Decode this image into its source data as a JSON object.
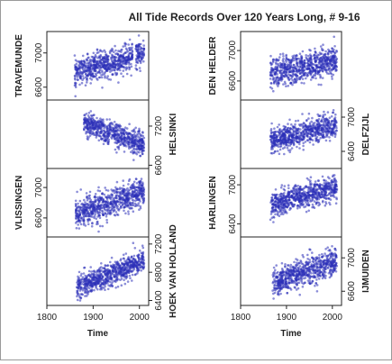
{
  "chart_data": {
    "type": "scatter",
    "title": "All Tide Records Over 120 Years Long, # 9-16",
    "xlabel": "Time",
    "xlim": [
      1800,
      2020
    ],
    "xticks": [
      1800,
      1900,
      2000
    ],
    "point_color": "#2b2fb8",
    "columns": [
      {
        "panels": [
          {
            "name": "TRAVEMUNDE",
            "label_side": "left",
            "tick_side": "left",
            "ylim": [
              6450,
              7250
            ],
            "yticks": [
              6600,
              7000
            ],
            "start_year": 1860,
            "end_year": 2010,
            "trend": [
              6760,
              7000
            ],
            "spread": 140,
            "gap": [
              1985,
              1992
            ]
          },
          {
            "name": "HELSINKI",
            "label_side": "right",
            "tick_side": "right",
            "ylim": [
              6550,
              7600
            ],
            "yticks": [
              6600,
              7200
            ],
            "start_year": 1880,
            "end_year": 2010,
            "trend": [
              7250,
              6900
            ],
            "spread": 170
          },
          {
            "name": "VLISSINGEN",
            "label_side": "left",
            "tick_side": "left",
            "ylim": [
              6350,
              7250
            ],
            "yticks": [
              6600,
              7000
            ],
            "start_year": 1862,
            "end_year": 2010,
            "trend": [
              6650,
              6950
            ],
            "spread": 160
          },
          {
            "name": "HOEK VAN HOLLAND",
            "label_side": "right",
            "tick_side": "right",
            "ylim": [
              6330,
              7300
            ],
            "yticks": [
              6400,
              6800,
              7200
            ],
            "start_year": 1864,
            "end_year": 2010,
            "trend": [
              6580,
              6960
            ],
            "spread": 150
          }
        ]
      },
      {
        "panels": [
          {
            "name": "DEN HELDER",
            "label_side": "left",
            "tick_side": "left",
            "ylim": [
              6350,
              7250
            ],
            "yticks": [
              6600,
              7000
            ],
            "start_year": 1865,
            "end_year": 2010,
            "trend": [
              6700,
              6880
            ],
            "spread": 170
          },
          {
            "name": "DELFZIJL",
            "label_side": "right",
            "tick_side": "right",
            "ylim": [
              6100,
              7300
            ],
            "yticks": [
              6400,
              7000
            ],
            "start_year": 1865,
            "end_year": 2010,
            "trend": [
              6600,
              6850
            ],
            "spread": 190
          },
          {
            "name": "HARLINGEN",
            "label_side": "left",
            "tick_side": "left",
            "ylim": [
              6200,
              7250
            ],
            "yticks": [
              6400,
              7000
            ],
            "start_year": 1865,
            "end_year": 2010,
            "trend": [
              6700,
              6950
            ],
            "spread": 170
          },
          {
            "name": "IJMUIDEN",
            "label_side": "right",
            "tick_side": "right",
            "ylim": [
              6430,
              7250
            ],
            "yticks": [
              6600,
              7000
            ],
            "start_year": 1870,
            "end_year": 2010,
            "trend": [
              6700,
              6950
            ],
            "spread": 150
          }
        ]
      }
    ]
  }
}
